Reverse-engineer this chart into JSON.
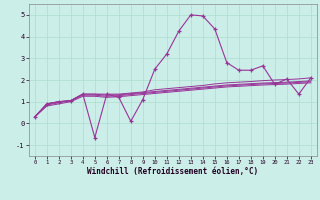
{
  "xlabel": "Windchill (Refroidissement éolien,°C)",
  "background_color": "#cceee8",
  "line_color": "#993399",
  "grid_color": "#aaddcc",
  "xlim": [
    -0.5,
    23.5
  ],
  "ylim": [
    -1.5,
    5.5
  ],
  "xticks": [
    0,
    1,
    2,
    3,
    4,
    5,
    6,
    7,
    8,
    9,
    10,
    11,
    12,
    13,
    14,
    15,
    16,
    17,
    18,
    19,
    20,
    21,
    22,
    23
  ],
  "yticks": [
    -1,
    0,
    1,
    2,
    3,
    4,
    5
  ],
  "series": [
    [
      0.3,
      0.9,
      1.0,
      1.05,
      1.35,
      -0.65,
      1.35,
      1.2,
      0.1,
      1.1,
      2.5,
      3.2,
      4.25,
      5.0,
      4.95,
      4.35,
      2.8,
      2.45,
      2.45,
      2.65,
      1.8,
      2.05,
      1.35,
      2.1
    ],
    [
      0.3,
      0.9,
      1.0,
      1.05,
      1.35,
      1.35,
      1.35,
      1.35,
      1.4,
      1.45,
      1.55,
      1.6,
      1.65,
      1.7,
      1.75,
      1.82,
      1.87,
      1.9,
      1.93,
      1.97,
      2.0,
      2.02,
      2.05,
      2.1
    ],
    [
      0.3,
      0.9,
      1.0,
      1.05,
      1.35,
      1.35,
      1.3,
      1.32,
      1.37,
      1.42,
      1.47,
      1.52,
      1.57,
      1.62,
      1.67,
      1.72,
      1.77,
      1.8,
      1.83,
      1.86,
      1.88,
      1.9,
      1.93,
      1.96
    ],
    [
      0.3,
      0.85,
      0.95,
      1.05,
      1.3,
      1.3,
      1.25,
      1.28,
      1.33,
      1.38,
      1.43,
      1.48,
      1.53,
      1.58,
      1.63,
      1.68,
      1.73,
      1.76,
      1.79,
      1.82,
      1.84,
      1.86,
      1.89,
      1.92
    ],
    [
      0.3,
      0.8,
      0.9,
      1.0,
      1.25,
      1.25,
      1.2,
      1.23,
      1.28,
      1.33,
      1.38,
      1.43,
      1.48,
      1.53,
      1.58,
      1.63,
      1.68,
      1.71,
      1.74,
      1.77,
      1.79,
      1.81,
      1.84,
      1.87
    ]
  ]
}
